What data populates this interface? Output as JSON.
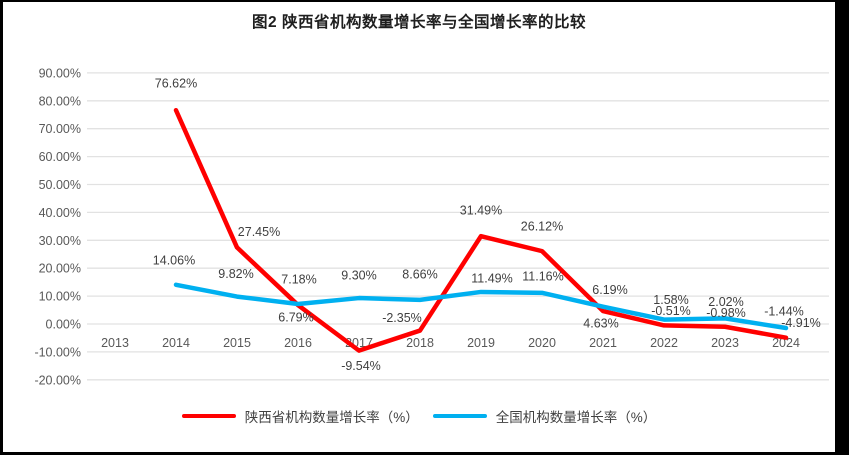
{
  "chart_data": {
    "type": "line",
    "title": "图2 陕西省机构数量增长率与全国增长率的比较",
    "categories": [
      "2013",
      "2014",
      "2015",
      "2016",
      "2017",
      "2018",
      "2019",
      "2020",
      "2021",
      "2022",
      "2023",
      "2024"
    ],
    "series": [
      {
        "name": "陕西省机构数量增长率（%）",
        "color": "#FF0000",
        "values": [
          null,
          76.62,
          27.45,
          6.79,
          -9.54,
          -2.35,
          31.49,
          26.12,
          4.63,
          -0.51,
          -0.98,
          -4.91
        ],
        "labels": [
          "",
          "76.62%",
          "27.45%",
          "6.79%",
          "-9.54%",
          "-2.35%",
          "31.49%",
          "26.12%",
          "4.63%",
          "-0.51%",
          "-0.98%",
          "-4.91%"
        ]
      },
      {
        "name": "全国机构数量增长率（%）",
        "color": "#00B0F0",
        "values": [
          null,
          14.06,
          9.82,
          7.18,
          9.3,
          8.66,
          11.49,
          11.16,
          6.19,
          1.58,
          2.02,
          -1.44
        ],
        "labels": [
          "",
          "14.06%",
          "9.82%",
          "7.18%",
          "9.30%",
          "8.66%",
          "11.49%",
          "11.16%",
          "6.19%",
          "1.58%",
          "2.02%",
          "-1.44%"
        ]
      }
    ],
    "y_axis": {
      "min": -20,
      "max": 90,
      "step": 10,
      "tick_labels": [
        "90.00%",
        "80.00%",
        "70.00%",
        "60.00%",
        "50.00%",
        "40.00%",
        "30.00%",
        "20.00%",
        "10.00%",
        "0.00%",
        "-10.00%",
        "-20.00%"
      ]
    },
    "grid": true,
    "legend_position": "bottom",
    "colors": {
      "gridline": "#E2E2E2",
      "tick_text": "#595959",
      "data_label_text": "#404040"
    }
  }
}
